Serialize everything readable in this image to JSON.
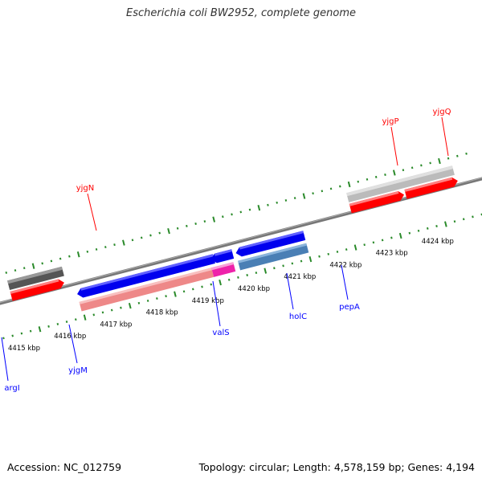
{
  "title": "Escherichia coli BW2952, complete genome",
  "footer": {
    "accession": "Accession: NC_012759",
    "summary": "Topology: circular; Length: 4,578,159 bp; Genes: 4,194"
  },
  "colors": {
    "backbone": "#777777",
    "forward_gene": "#ff0000",
    "reverse_gene": "#0000ff",
    "forward_tick": "#2a8a2a",
    "rna_forward": "#bbbbbb",
    "rna_dark": "#555555",
    "rna_reverse": "#4a7fb5",
    "pseudo_pink": "#ee8888",
    "holC_magenta": "#ee22aa"
  },
  "scale_labels": [
    {
      "text": "4415 kbp",
      "kbp": 4415
    },
    {
      "text": "4416 kbp",
      "kbp": 4416
    },
    {
      "text": "4417 kbp",
      "kbp": 4417
    },
    {
      "text": "4418 kbp",
      "kbp": 4418
    },
    {
      "text": "4419 kbp",
      "kbp": 4419
    },
    {
      "text": "4420 kbp",
      "kbp": 4420
    },
    {
      "text": "4421 kbp",
      "kbp": 4421
    },
    {
      "text": "4422 kbp",
      "kbp": 4422
    },
    {
      "text": "4423 kbp",
      "kbp": 4423
    },
    {
      "text": "4424 kbp",
      "kbp": 4424
    }
  ],
  "gene_labels": [
    {
      "text": "yjgN",
      "strand": "forward"
    },
    {
      "text": "yjgP",
      "strand": "forward"
    },
    {
      "text": "yjgQ",
      "strand": "forward"
    },
    {
      "text": "argI",
      "strand": "reverse"
    },
    {
      "text": "yjgM",
      "strand": "reverse"
    },
    {
      "text": "valS",
      "strand": "reverse"
    },
    {
      "text": "holC",
      "strand": "reverse"
    },
    {
      "text": "pepA",
      "strand": "reverse"
    }
  ]
}
